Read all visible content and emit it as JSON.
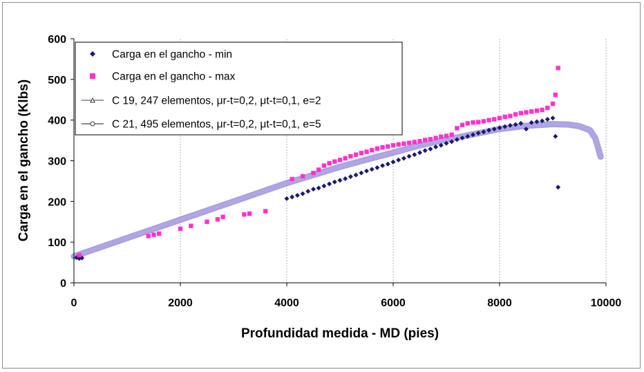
{
  "chart_data": {
    "type": "scatter",
    "title": "",
    "xlabel": "Profundidad medida - MD (pies)",
    "ylabel": "Carga en el gancho (Klbs)",
    "xlim": [
      0,
      10000
    ],
    "ylim": [
      0,
      600
    ],
    "xticks": [
      "0",
      "2000",
      "4000",
      "6000",
      "8000",
      "10000"
    ],
    "yticks": [
      "0",
      "100",
      "200",
      "300",
      "400",
      "500",
      "600"
    ],
    "grid": "vertical dashed gridlines",
    "legend_position": "top-left",
    "series": [
      {
        "name": "Carga en el gancho - min",
        "color": "#1a1a6e",
        "marker": "diamond",
        "x": [
          50,
          100,
          150,
          4000,
          4100,
          4200,
          4300,
          4400,
          4500,
          4600,
          4700,
          4800,
          4900,
          5000,
          5100,
          5200,
          5300,
          5400,
          5500,
          5600,
          5700,
          5800,
          5900,
          6000,
          6100,
          6200,
          6300,
          6400,
          6500,
          6600,
          6700,
          6800,
          6900,
          7000,
          7100,
          7200,
          7300,
          7400,
          7500,
          7600,
          7700,
          7800,
          7900,
          8000,
          8100,
          8200,
          8300,
          8400,
          8500,
          8600,
          8700,
          8800,
          8900,
          9000,
          9050,
          9100
        ],
        "y": [
          62,
          60,
          61,
          207,
          211,
          215,
          219,
          225,
          230,
          233,
          238,
          243,
          248,
          252,
          256,
          261,
          265,
          270,
          275,
          279,
          283,
          288,
          292,
          297,
          302,
          306,
          311,
          315,
          320,
          325,
          329,
          334,
          338,
          343,
          347,
          352,
          356,
          360,
          364,
          368,
          371,
          375,
          378,
          381,
          384,
          387,
          389,
          392,
          378,
          394,
          396,
          398,
          402,
          405,
          360,
          235
        ]
      },
      {
        "name": "Carga en el gancho - max",
        "color": "#ff33cc",
        "marker": "square",
        "x": [
          100,
          1400,
          1500,
          1600,
          2000,
          2200,
          2500,
          2700,
          2800,
          3200,
          3300,
          3600,
          4100,
          4300,
          4500,
          4600,
          4700,
          4800,
          4900,
          5000,
          5100,
          5200,
          5300,
          5400,
          5500,
          5600,
          5700,
          5800,
          5900,
          6000,
          6100,
          6200,
          6300,
          6400,
          6500,
          6600,
          6700,
          6800,
          6900,
          7000,
          7100,
          7200,
          7300,
          7400,
          7500,
          7600,
          7700,
          7800,
          7900,
          8000,
          8100,
          8200,
          8300,
          8400,
          8500,
          8600,
          8700,
          8800,
          8900,
          9000,
          9050,
          9100
        ],
        "y": [
          68,
          115,
          118,
          121,
          133,
          140,
          150,
          156,
          162,
          168,
          170,
          176,
          255,
          262,
          270,
          278,
          288,
          294,
          298,
          302,
          306,
          311,
          315,
          319,
          322,
          326,
          330,
          333,
          335,
          338,
          340,
          342,
          344,
          346,
          348,
          351,
          353,
          356,
          359,
          361,
          364,
          380,
          388,
          392,
          394,
          395,
          397,
          400,
          402,
          405,
          408,
          410,
          414,
          417,
          419,
          421,
          423,
          425,
          430,
          440,
          462,
          528
        ]
      },
      {
        "name": "C 19, 247 elementos, μr-t=0,2, μt-t=0,1, e=2",
        "color": "#9b8fd8",
        "marker": "triangle",
        "x": [
          0,
          1000,
          2000,
          3000,
          4000,
          4500,
          5000,
          5500,
          6000,
          6500,
          7000,
          7500,
          8000,
          8500,
          9000,
          9300,
          9500,
          9700,
          9800,
          9900
        ],
        "y": [
          65,
          110,
          155,
          200,
          245,
          265,
          285,
          303,
          320,
          338,
          352,
          365,
          378,
          386,
          390,
          389,
          385,
          375,
          355,
          310
        ]
      },
      {
        "name": "C 21, 495 elementos, μr-t=0,2, μt-t=0,1, e=5",
        "color": "#b0a8e6",
        "marker": "circle",
        "x": [
          0,
          1000,
          2000,
          3000,
          4000,
          4500,
          5000,
          5500,
          6000,
          6500,
          7000,
          7500,
          8000,
          8500,
          9000,
          9300,
          9500,
          9700,
          9800,
          9900
        ],
        "y": [
          65,
          110,
          155,
          200,
          245,
          265,
          285,
          303,
          320,
          338,
          352,
          365,
          378,
          386,
          390,
          389,
          385,
          375,
          355,
          310
        ]
      }
    ]
  }
}
